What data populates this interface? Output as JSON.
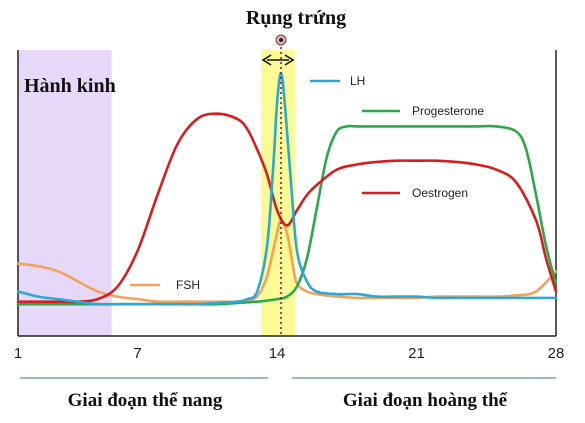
{
  "chart_data": {
    "type": "line",
    "title": "Rụng trứng",
    "xlim": [
      1,
      28
    ],
    "x_ticks": [
      1,
      7,
      14,
      21,
      28
    ],
    "grid": false,
    "colors": {
      "menstruation": "#e6d9f7",
      "ovulation": "#fbfb96",
      "ovulation_line": "#b0006a",
      "axis": "#222222",
      "phase_underline": "#9fb7c8"
    },
    "menstruation_band": {
      "label": "Hành kinh",
      "x_range": [
        1,
        5
      ]
    },
    "ovulation_band": {
      "x_range": [
        13.2,
        14.9
      ],
      "day": 14.2
    },
    "series": [
      {
        "name": "LH",
        "color": "#2ba9d6",
        "x": [
          1,
          2,
          3,
          4,
          5,
          6,
          7,
          8,
          9,
          10,
          11,
          12,
          12.5,
          13,
          13.5,
          13.8,
          14,
          14.2,
          14.4,
          14.7,
          15,
          15.5,
          16,
          17,
          18,
          19,
          20,
          21,
          22,
          23,
          24,
          25,
          26,
          27,
          28
        ],
        "values": [
          12,
          10,
          9,
          8,
          7,
          7,
          7,
          7,
          7,
          7,
          7.5,
          8,
          9,
          12,
          30,
          60,
          86,
          98,
          85,
          55,
          28,
          16,
          12,
          11,
          11,
          10,
          10,
          10,
          9.5,
          9.5,
          9.5,
          9.5,
          9.5,
          9.5,
          9.5
        ]
      },
      {
        "name": "FSH",
        "color": "#f2a25d",
        "x": [
          1,
          2,
          3,
          4,
          5,
          6,
          7,
          8,
          9,
          10,
          11,
          12,
          12.5,
          13,
          13.5,
          14,
          14.2,
          14.5,
          14.8,
          15,
          15.5,
          16,
          17,
          18,
          19,
          20,
          21,
          22,
          23,
          24,
          25,
          26,
          27,
          28
        ],
        "values": [
          23,
          22,
          20,
          16,
          12,
          10,
          9,
          8,
          8,
          8,
          8,
          8,
          8.5,
          10,
          18,
          35,
          40,
          35,
          22,
          15,
          12,
          11,
          10,
          9.5,
          9.5,
          9.5,
          9.5,
          10,
          10,
          10,
          10,
          10.5,
          12,
          20
        ]
      },
      {
        "name": "Progesterone",
        "color": "#2aa84a",
        "x": [
          1,
          2,
          3,
          4,
          5,
          6,
          7,
          8,
          9,
          10,
          11,
          12,
          13,
          14,
          14.5,
          15,
          15.5,
          16,
          16.5,
          17,
          17.5,
          18,
          19,
          20,
          21,
          22,
          23,
          24,
          25,
          26,
          26.5,
          27,
          27.5,
          28
        ],
        "values": [
          7,
          7,
          7,
          7,
          7,
          7,
          7,
          7,
          7,
          7,
          7,
          7.5,
          8,
          9,
          10,
          14,
          25,
          45,
          65,
          75,
          77,
          77,
          77,
          77,
          77,
          77,
          77,
          77,
          77,
          75,
          68,
          50,
          30,
          15
        ]
      },
      {
        "name": "Oestrogen",
        "color": "#d61e1e",
        "x": [
          1,
          2,
          3,
          4,
          5,
          6,
          7,
          8,
          9,
          10,
          11,
          12,
          12.5,
          13,
          13.5,
          14,
          14.5,
          15,
          15.5,
          16,
          17,
          18,
          19,
          20,
          21,
          22,
          23,
          24,
          25,
          26,
          27,
          27.5,
          28
        ],
        "values": [
          8,
          8,
          8,
          8,
          9,
          14,
          28,
          50,
          70,
          80,
          82,
          80,
          76,
          68,
          58,
          44,
          38,
          44,
          50,
          54,
          60,
          62,
          63,
          63.5,
          63.5,
          63.5,
          63,
          62,
          60,
          55,
          40,
          25,
          12
        ]
      }
    ],
    "legend_entries": [
      {
        "name": "LH",
        "text": "LH"
      },
      {
        "name": "Progesterone",
        "text": "Progesterone"
      },
      {
        "name": "Oestrogen",
        "text": "Oestrogen"
      },
      {
        "name": "FSH",
        "text": "FSH"
      }
    ],
    "phases": [
      {
        "label": "Giai đoạn thể nang",
        "x_range": [
          1,
          14
        ]
      },
      {
        "label": "Giai đoạn hoàng thể",
        "x_range": [
          14.5,
          28
        ]
      }
    ]
  }
}
